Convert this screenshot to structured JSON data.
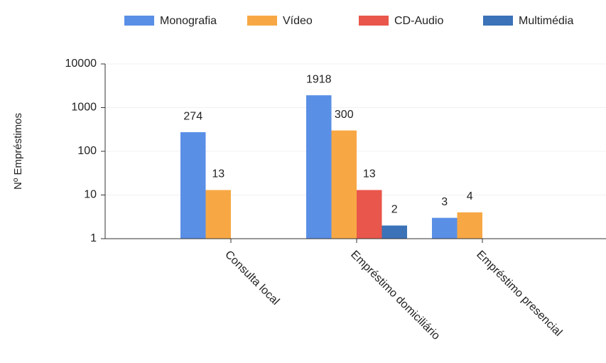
{
  "chart_data": {
    "type": "bar",
    "y_label": "Nº Empréstimos",
    "categories": [
      "Consulta local",
      "Empréstimo domiciliário",
      "Empréstimo presencial"
    ],
    "series": [
      {
        "name": "Monografia",
        "color": "#5a8fe6",
        "values": [
          274,
          1918,
          3
        ]
      },
      {
        "name": "Vídeo",
        "color": "#f7a845",
        "values": [
          13,
          300,
          4
        ]
      },
      {
        "name": "CD-Audio",
        "color": "#e9564b",
        "values": [
          null,
          13,
          null
        ]
      },
      {
        "name": "Multimédia",
        "color": "#3b72b8",
        "values": [
          null,
          2,
          null
        ]
      }
    ],
    "ylim": [
      1,
      10000
    ],
    "yticks": [
      1,
      10,
      100,
      1000,
      10000
    ],
    "log_y": true,
    "grid": true,
    "legend": "top"
  }
}
